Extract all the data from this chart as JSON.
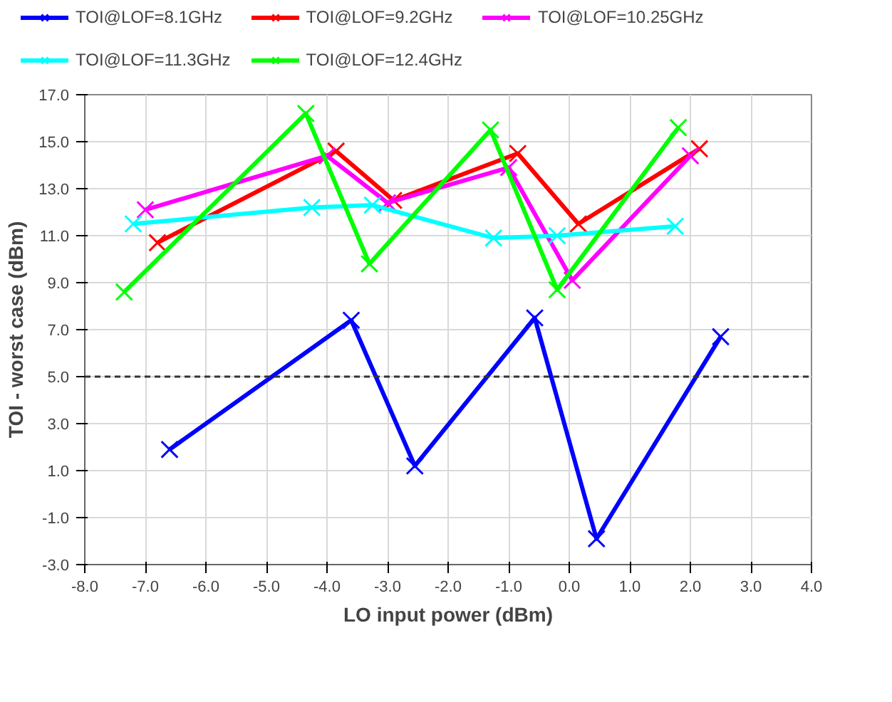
{
  "chart_data": {
    "type": "line",
    "xlabel": "LO input power (dBm)",
    "ylabel": "TOI - worst case (dBm)",
    "xlim": [
      -8,
      4
    ],
    "ylim": [
      -3,
      17
    ],
    "xticks": [
      {
        "value": -8,
        "label": "-8.0"
      },
      {
        "value": -7,
        "label": "-7.0"
      },
      {
        "value": -6,
        "label": "-6.0"
      },
      {
        "value": -5,
        "label": "-5.0"
      },
      {
        "value": -4,
        "label": "-4.0"
      },
      {
        "value": -3,
        "label": "-3.0"
      },
      {
        "value": -2,
        "label": "-2.0"
      },
      {
        "value": -1,
        "label": "-1.0"
      },
      {
        "value": 0,
        "label": "0.0"
      },
      {
        "value": 1,
        "label": "1.0"
      },
      {
        "value": 2,
        "label": "2.0"
      },
      {
        "value": 3,
        "label": "3.0"
      },
      {
        "value": 4,
        "label": "4.0"
      }
    ],
    "yticks": [
      {
        "value": -3,
        "label": "-3.0"
      },
      {
        "value": -1,
        "label": "-1.0"
      },
      {
        "value": 1,
        "label": "1.0"
      },
      {
        "value": 3,
        "label": "3.0"
      },
      {
        "value": 5,
        "label": "5.0"
      },
      {
        "value": 7,
        "label": "7.0"
      },
      {
        "value": 9,
        "label": "9.0"
      },
      {
        "value": 11,
        "label": "11.0"
      },
      {
        "value": 13,
        "label": "13.0"
      },
      {
        "value": 15,
        "label": "15.0"
      },
      {
        "value": 17,
        "label": "17.0"
      }
    ],
    "grid": true,
    "legend": "top",
    "marker": "cross",
    "line_style": "solid",
    "ref_lines": [
      {
        "axis": "y",
        "value": 5,
        "color": "#333333",
        "line_style": "dashed"
      }
    ],
    "series": [
      {
        "name": "TOI@LOF=8.1GHz",
        "color": "#0000ff",
        "x": [
          -6.6,
          -3.6,
          -2.55,
          -0.57,
          0.45,
          2.5
        ],
        "values": [
          1.9,
          7.4,
          1.2,
          7.5,
          -1.9,
          6.7
        ]
      },
      {
        "name": "TOI@LOF=9.2GHz",
        "color": "#ff0000",
        "x": [
          -6.8,
          -3.85,
          -2.9,
          -0.85,
          0.15,
          2.15
        ],
        "values": [
          10.7,
          14.6,
          12.5,
          14.5,
          11.5,
          14.7
        ]
      },
      {
        "name": "TOI@LOF=10.25GHz",
        "color": "#ff00ff",
        "x": [
          -7.0,
          -4.0,
          -3.0,
          -1.0,
          0.05,
          2.0
        ],
        "values": [
          12.1,
          14.4,
          12.4,
          13.9,
          9.1,
          14.4
        ]
      },
      {
        "name": "TOI@LOF=11.3GHz",
        "color": "#00ffff",
        "x": [
          -7.2,
          -4.25,
          -3.25,
          -1.25,
          -0.2,
          1.75
        ],
        "values": [
          11.5,
          12.2,
          12.3,
          10.9,
          11.0,
          11.4
        ]
      },
      {
        "name": "TOI@LOF=12.4GHz",
        "color": "#00ff00",
        "x": [
          -7.35,
          -4.35,
          -3.3,
          -1.3,
          -0.2,
          1.8
        ],
        "values": [
          8.6,
          16.2,
          9.8,
          15.5,
          8.7,
          15.6
        ]
      }
    ]
  }
}
